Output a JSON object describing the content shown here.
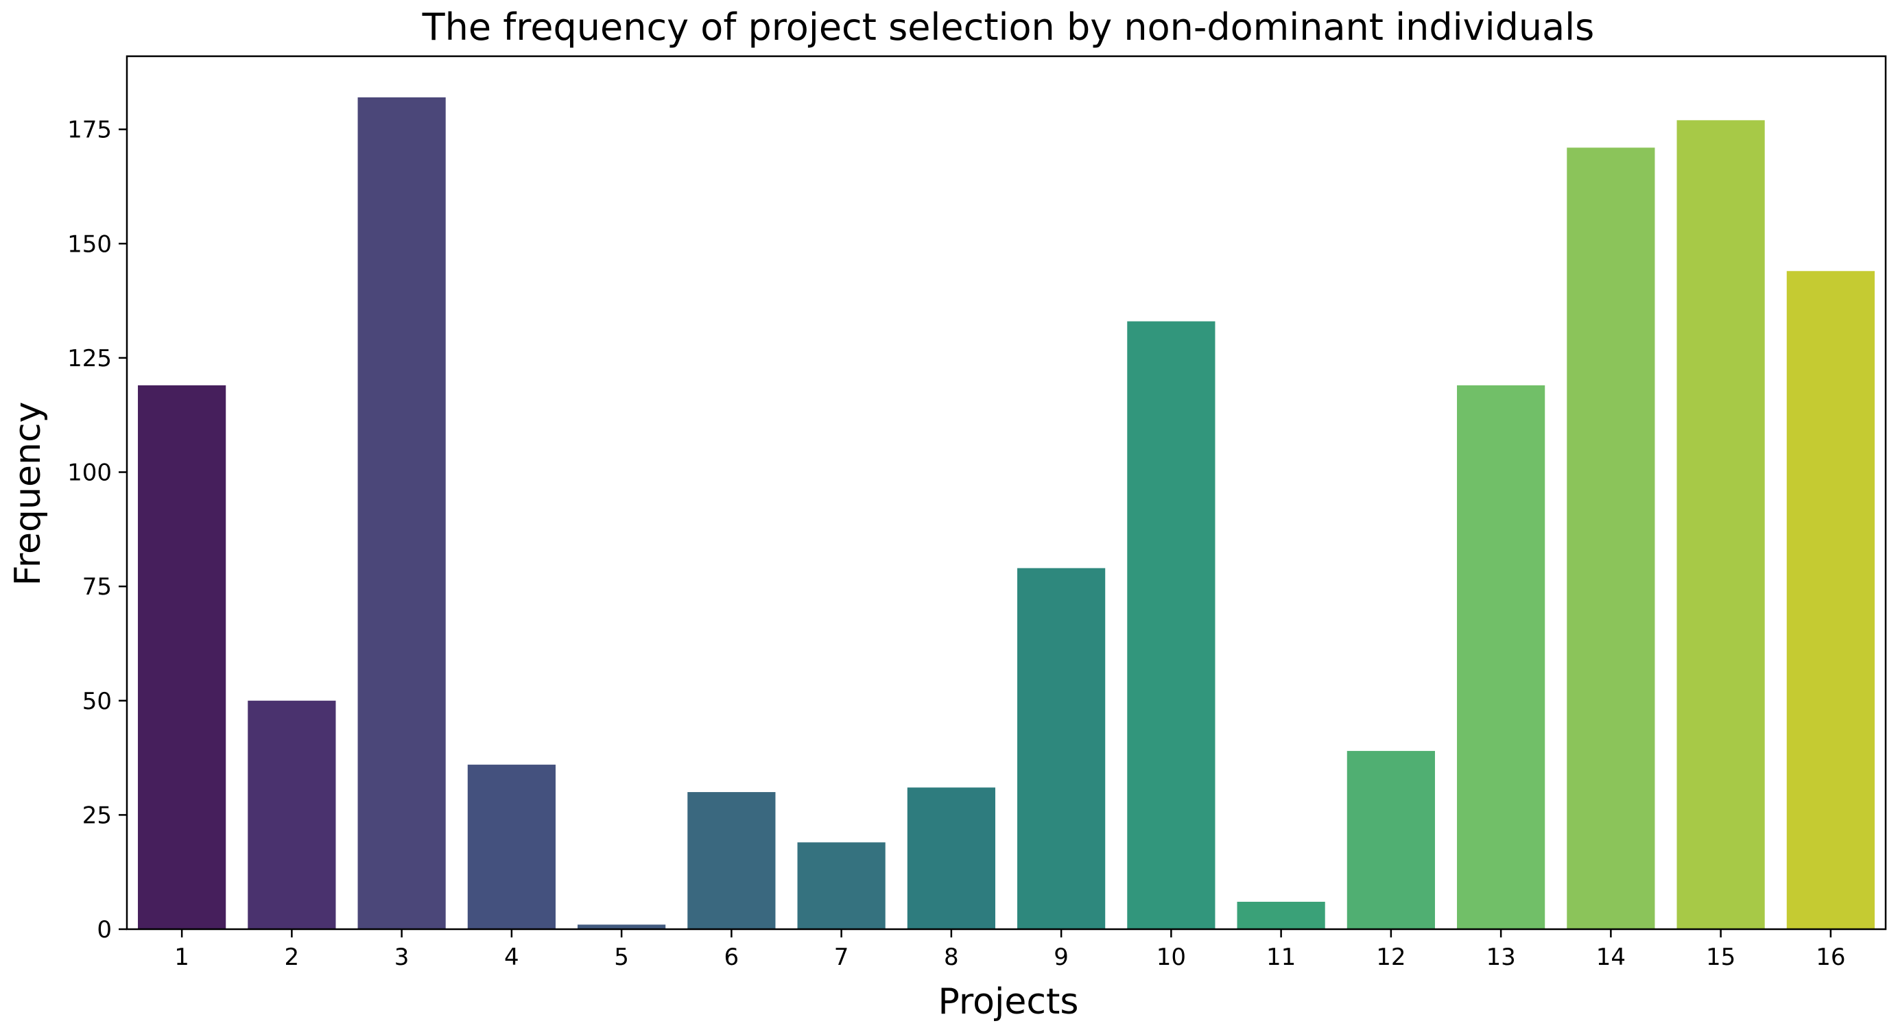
{
  "chart_data": {
    "type": "bar",
    "title": "The frequency of project selection by non-dominant individuals",
    "xlabel": "Projects",
    "ylabel": "Frequency",
    "categories": [
      "1",
      "2",
      "3",
      "4",
      "5",
      "6",
      "7",
      "8",
      "9",
      "10",
      "11",
      "12",
      "13",
      "14",
      "15",
      "16"
    ],
    "values": [
      119,
      50,
      182,
      36,
      1,
      30,
      19,
      31,
      79,
      133,
      6,
      39,
      119,
      171,
      177,
      144
    ],
    "colors": [
      "#461F5C",
      "#4A326E",
      "#4B4779",
      "#44517E",
      "#425A7F",
      "#3A687F",
      "#35727F",
      "#2E7C7E",
      "#2E887D",
      "#32967C",
      "#3AA178",
      "#50AF72",
      "#71BF68",
      "#8BC45A",
      "#A7C947",
      "#C5CB32"
    ],
    "ylim": [
      0,
      191
    ],
    "yticks": [
      0,
      25,
      50,
      75,
      100,
      125,
      150,
      175
    ],
    "grid": false,
    "legend": "none"
  }
}
